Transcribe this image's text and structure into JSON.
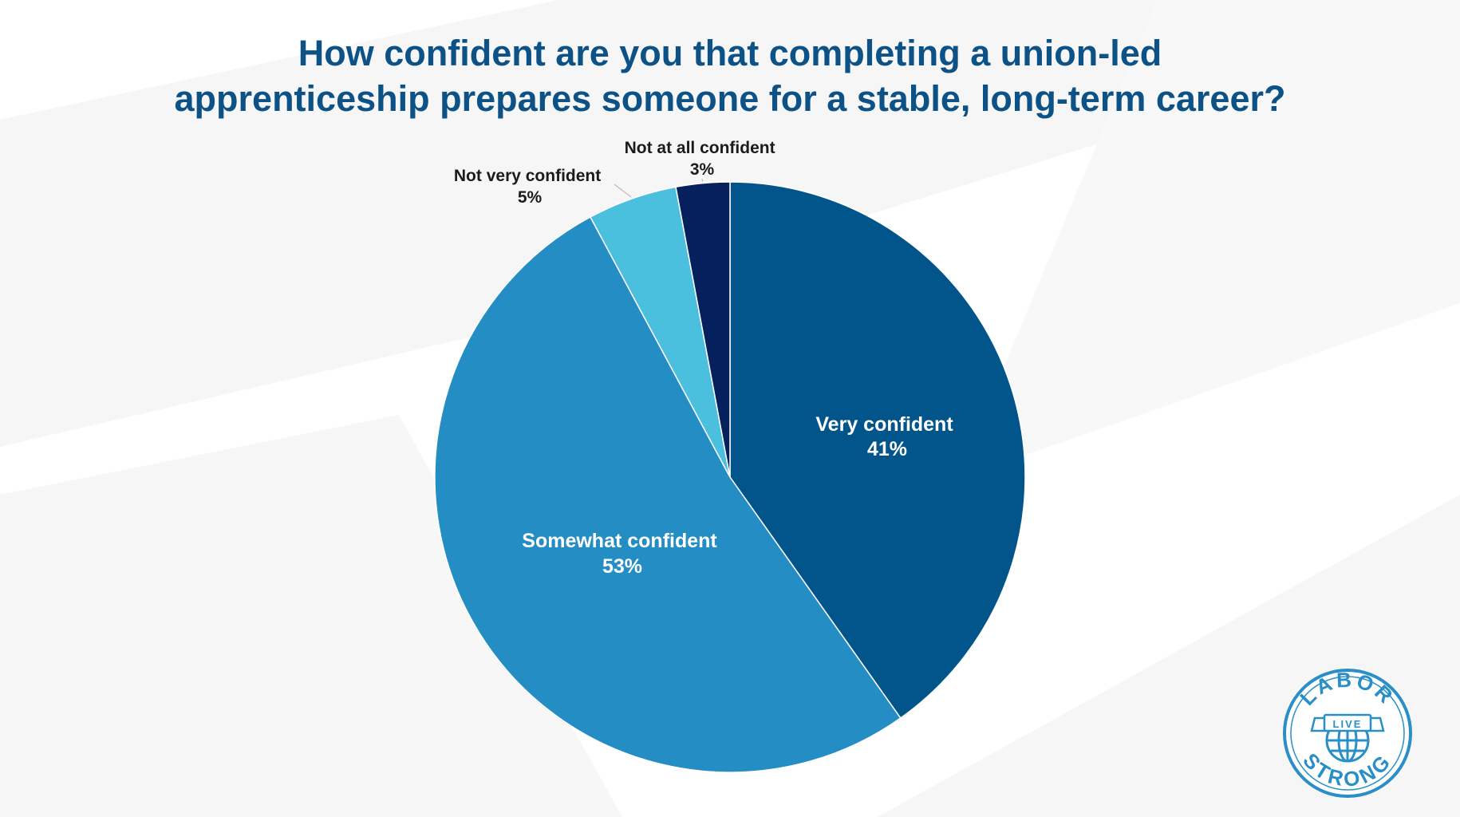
{
  "title_line_1": "How confident are you that completing a union-led",
  "title_line_2": "apprenticeship prepares someone for a stable, long-term career?",
  "colors": {
    "title": "#0d5287",
    "very_confident": "#02558b",
    "somewhat_confident": "#248dc3",
    "not_very_confident": "#4bbfde",
    "not_at_all_confident": "#061f5d",
    "logo": "#2a8fc6"
  },
  "chart_data": {
    "type": "pie",
    "title": "How confident are you that completing a union-led apprenticeship prepares someone for a stable, long-term career?",
    "start": "12 o'clock",
    "direction": "clockwise",
    "slices": [
      {
        "label": "Very confident",
        "value": 41,
        "value_label": "41%",
        "color": "#02558b",
        "label_placement": "inside"
      },
      {
        "label": "Somewhat confident",
        "value": 53,
        "value_label": "53%",
        "color": "#248dc3",
        "label_placement": "inside"
      },
      {
        "label": "Not very confident",
        "value": 5,
        "value_label": "5%",
        "color": "#4bbfde",
        "label_placement": "outside"
      },
      {
        "label": "Not at all confident",
        "value": 3,
        "value_label": "3%",
        "color": "#061f5d",
        "label_placement": "outside"
      }
    ]
  },
  "logo": {
    "icon": "globe-icon",
    "top_text": "LABOR",
    "middle_text": "LIVE",
    "bottom_text": "STRONG"
  }
}
